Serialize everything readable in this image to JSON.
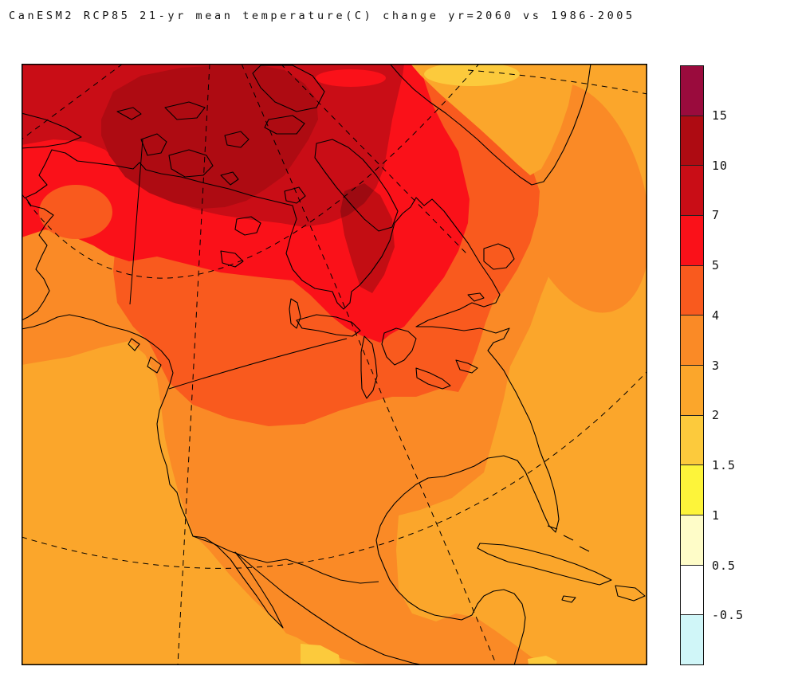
{
  "title": "CanESM2 RCP85 21-yr mean temperature(C) change yr=2060 vs 1986-2005",
  "levels": {
    "labels": [
      "15",
      "10",
      "7",
      "5",
      "4",
      "3",
      "2",
      "1.5",
      "1",
      "0.5",
      "-0.5"
    ],
    "colors": [
      "#9A0B3D",
      "#AE0B12",
      "#C90D16",
      "#FA1119",
      "#F95A1E",
      "#FA8A26",
      "#FBA62B",
      "#FCCA3C",
      "#FDF43A",
      "#FEFCC8",
      "#FFFFFF",
      "#D0F6F8"
    ]
  },
  "chart_data": {
    "type": "filled_contour_map",
    "title": "CanESM2 RCP85 21-yr mean temperature(C) change yr=2060 vs 1986-2005",
    "model": "CanESM2",
    "scenario": "RCP85",
    "variable": "21-yr mean temperature change (C)",
    "target_year": "2060",
    "baseline_period": "1986-2005",
    "region": "North America (polar-style projection)",
    "contour_levels_C": [
      -0.5,
      0.5,
      1,
      1.5,
      2,
      3,
      4,
      5,
      7,
      10,
      15
    ],
    "colorbar_labels_top_to_bottom": [
      "15",
      "10",
      "7",
      "5",
      "4",
      "3",
      "2",
      "1.5",
      "1",
      "0.5",
      "-0.5"
    ],
    "band_colors_top_to_bottom": [
      "#9A0B3D",
      "#AE0B12",
      "#C90D16",
      "#FA1119",
      "#F95A1E",
      "#FA8A26",
      "#FBA62B",
      "#FCCA3C",
      "#FDF43A",
      "#FEFCC8",
      "#FFFFFF",
      "#D0F6F8"
    ],
    "legend_position": "right",
    "grid": "dashed graticule arcs and meridians, solid national borders",
    "regions_depicted": [
      {
        "area": "Central Arctic Ocean / Beaufort Sea",
        "change_C": "10 to 15"
      },
      {
        "area": "North Baffin Island patch",
        "change_C": "10 to 15 (darkened)"
      },
      {
        "area": "Canadian Arctic Archipelago, Arctic coast, top-left corner",
        "change_C": "7 to 10"
      },
      {
        "area": "Alaska interior, Yukon, NWT, Hudson Bay, Quebec, Labrador",
        "change_C": "5 to 7"
      },
      {
        "area": "Southern Canada, US northern plains, Great Lakes, St Lawrence",
        "change_C": "4 to 5"
      },
      {
        "area": "Western/central/eastern US, Mexico interior, Davis Strait, NW Atlantic oval",
        "change_C": "3 to 4"
      },
      {
        "area": "Pacific Ocean, Gulf of Mexico, Caribbean, subtropical Atlantic, Greenland interior",
        "change_C": "2 to 3"
      },
      {
        "area": "Northern Greenland interior",
        "change_C": "1.5 to 2"
      },
      {
        "area": "Small coastal wedges at south edge",
        "change_C": "1.5 to 2"
      }
    ]
  }
}
